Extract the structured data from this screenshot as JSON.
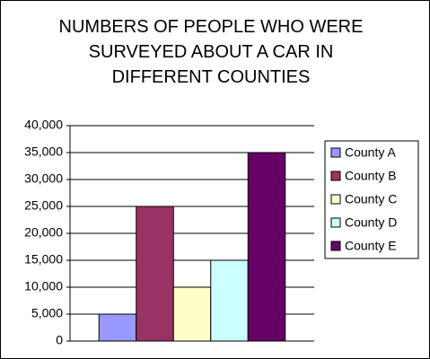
{
  "chart_data": {
    "type": "bar",
    "title": "NUMBERS OF PEOPLE WHO WERE SURVEYED ABOUT A CAR IN DIFFERENT COUNTIES",
    "categories": [
      null
    ],
    "series": [
      {
        "name": "County A",
        "color": "#9999ff",
        "values": [
          5000
        ]
      },
      {
        "name": "County B",
        "color": "#993366",
        "values": [
          25000
        ]
      },
      {
        "name": "County C",
        "color": "#ffffcc",
        "values": [
          10000
        ]
      },
      {
        "name": "County D",
        "color": "#ccffff",
        "values": [
          15000
        ]
      },
      {
        "name": "County E",
        "color": "#660066",
        "values": [
          35000
        ]
      }
    ],
    "ylim": [
      0,
      40000
    ],
    "yticks": [
      0,
      {
        "value": 5000,
        "label": "5,000"
      },
      {
        "value": 10000,
        "label": "10,000"
      },
      {
        "value": 15000,
        "label": "15,000"
      },
      {
        "value": 20000,
        "label": "20,000"
      },
      {
        "value": 25000,
        "label": "25,000"
      },
      {
        "value": 30000,
        "label": "30,000"
      },
      {
        "value": 35000,
        "label": "35,000"
      },
      {
        "value": 40000,
        "label": "40,000"
      }
    ],
    "grid": true,
    "legend": "right"
  }
}
